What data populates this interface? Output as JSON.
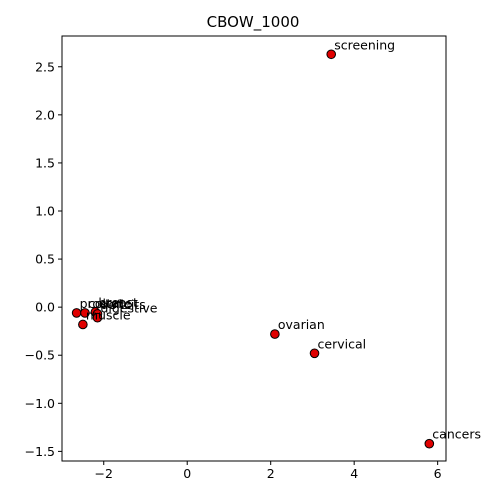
{
  "chart_data": {
    "type": "scatter",
    "title": "CBOW_1000",
    "xlabel": "",
    "ylabel": "",
    "xlim": [
      -3.0,
      6.2
    ],
    "ylim": [
      -1.6,
      2.82
    ],
    "xticks": [
      -2,
      0,
      2,
      4,
      6
    ],
    "yticks": [
      -1.5,
      -1.0,
      -0.5,
      0.0,
      0.5,
      1.0,
      1.5,
      2.0,
      2.5
    ],
    "xtick_labels": [
      "−2",
      "0",
      "2",
      "4",
      "6"
    ],
    "ytick_labels": [
      "−1.5",
      "−1.0",
      "−0.5",
      "0.0",
      "0.5",
      "1.0",
      "1.5",
      "2.0",
      "2.5"
    ],
    "grid": false,
    "marker_color": "#e00000",
    "marker_edge": "#000000",
    "points": [
      {
        "label": "screening",
        "x": 3.45,
        "y": 2.63
      },
      {
        "label": "ovarian",
        "x": 2.1,
        "y": -0.28
      },
      {
        "label": "cervical",
        "x": 3.05,
        "y": -0.48
      },
      {
        "label": "cancers",
        "x": 5.8,
        "y": -1.42
      },
      {
        "label": "prostate",
        "x": -2.65,
        "y": -0.06
      },
      {
        "label": "colon",
        "x": -2.45,
        "y": -0.06
      },
      {
        "label": "breast",
        "x": -2.2,
        "y": -0.05
      },
      {
        "label": "deficits",
        "x": -2.15,
        "y": -0.07
      },
      {
        "label": "digestive",
        "x": -2.15,
        "y": -0.11
      },
      {
        "label": "muscle",
        "x": -2.5,
        "y": -0.18
      }
    ]
  }
}
